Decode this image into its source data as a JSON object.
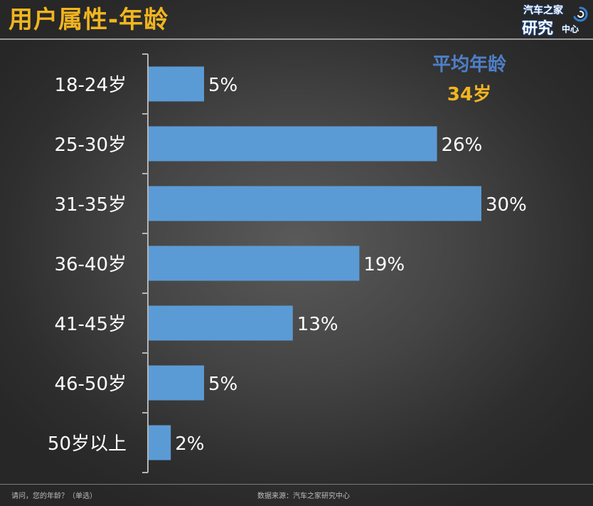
{
  "title": "用户属性-年龄",
  "logo": {
    "line1": "汽车之家",
    "line2": "研究",
    "line3": "中心"
  },
  "average": {
    "label": "平均年龄",
    "value": "34岁"
  },
  "chart_data": {
    "type": "bar",
    "orientation": "horizontal",
    "categories": [
      "18-24岁",
      "25-30岁",
      "31-35岁",
      "36-40岁",
      "41-45岁",
      "46-50岁",
      "50岁以上"
    ],
    "values": [
      5,
      26,
      30,
      19,
      13,
      5,
      2
    ],
    "value_labels": [
      "5%",
      "26%",
      "30%",
      "19%",
      "13%",
      "5%",
      "2%"
    ],
    "unit": "%",
    "xlim": [
      0,
      30
    ],
    "bar_color": "#5b9bd5",
    "grid": false,
    "legend": "none"
  },
  "footer": {
    "question": "请问，您的年龄？（单选）",
    "source": "数据来源：汽车之家研究中心"
  },
  "colors": {
    "title": "#f2b51f",
    "average_label": "#4f7fc7",
    "average_value": "#f2b51f",
    "text": "#ffffff"
  }
}
